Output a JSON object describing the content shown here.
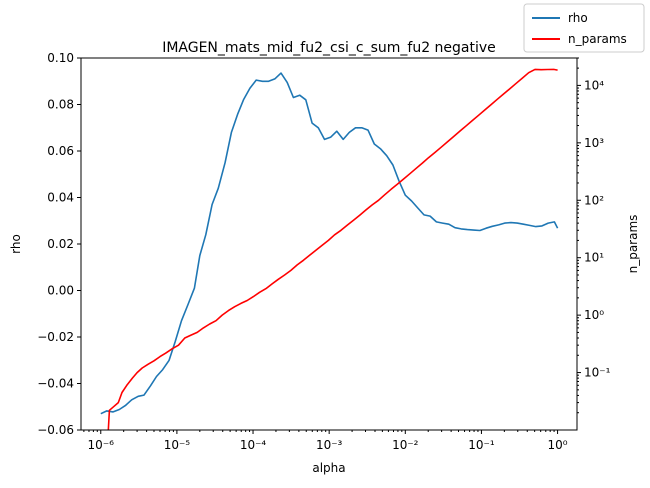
{
  "chart_data": {
    "type": "line",
    "title": "IMAGEN_mats_mid_fu2_csi_c_sum_fu2 negative",
    "xlabel": "alpha",
    "ylabel_left": "rho",
    "ylabel_right": "n_params",
    "x_scale": "log",
    "x_lim": [
      5.5e-07,
      1.8
    ],
    "y_left_lim": [
      -0.06,
      0.1
    ],
    "y_right_scale": "log",
    "y_right_lim": [
      0.01,
      30000
    ],
    "x_ticks": [
      {
        "value": 1e-06,
        "label": "10⁻⁶"
      },
      {
        "value": 1e-05,
        "label": "10⁻⁵"
      },
      {
        "value": 0.0001,
        "label": "10⁻⁴"
      },
      {
        "value": 0.001,
        "label": "10⁻³"
      },
      {
        "value": 0.01,
        "label": "10⁻²"
      },
      {
        "value": 0.1,
        "label": "10⁻¹"
      },
      {
        "value": 1,
        "label": "10⁰"
      }
    ],
    "y_left_ticks": [
      {
        "value": 0.1,
        "label": "0.10"
      },
      {
        "value": 0.08,
        "label": "0.08"
      },
      {
        "value": 0.06,
        "label": "0.06"
      },
      {
        "value": 0.04,
        "label": "0.04"
      },
      {
        "value": 0.02,
        "label": "0.02"
      },
      {
        "value": 0.0,
        "label": "0.00"
      },
      {
        "value": -0.02,
        "label": "−0.02"
      },
      {
        "value": -0.04,
        "label": "−0.04"
      },
      {
        "value": -0.06,
        "label": "−0.06"
      }
    ],
    "y_right_ticks": [
      {
        "value": 0.1,
        "label": "10⁻¹"
      },
      {
        "value": 1,
        "label": "10⁰"
      },
      {
        "value": 10,
        "label": "10¹"
      },
      {
        "value": 100,
        "label": "10²"
      },
      {
        "value": 1000,
        "label": "10³"
      },
      {
        "value": 10000,
        "label": "10⁴"
      }
    ],
    "grid": false,
    "legend_position": "top-right",
    "series": [
      {
        "name": "rho",
        "axis": "left",
        "color": "#1f77b4",
        "x": [
          1e-06,
          1.2e-06,
          1.45e-06,
          1.75e-06,
          2.1e-06,
          2.55e-06,
          3.1e-06,
          3.7e-06,
          4.5e-06,
          5.4e-06,
          6.5e-06,
          7.9e-06,
          9.5e-06,
          1.15e-05,
          1.4e-05,
          1.7e-05,
          2e-05,
          2.4e-05,
          2.9e-05,
          3.5e-05,
          4.3e-05,
          5.2e-05,
          6.3e-05,
          7.5e-05,
          9.1e-05,
          0.00011,
          0.000133,
          0.00016,
          0.000193,
          0.000233,
          0.000281,
          0.000339,
          0.00041,
          0.000494,
          0.000596,
          0.00072,
          0.000869,
          0.00105,
          0.00126,
          0.00153,
          0.00184,
          0.00222,
          0.00268,
          0.00324,
          0.00391,
          0.00471,
          0.00569,
          0.00687,
          0.00829,
          0.01,
          0.0121,
          0.0146,
          0.0176,
          0.0212,
          0.0256,
          0.0309,
          0.0373,
          0.045,
          0.0543,
          0.0655,
          0.0791,
          0.0954,
          0.115,
          0.139,
          0.168,
          0.202,
          0.244,
          0.295,
          0.356,
          0.429,
          0.518,
          0.625,
          0.754,
          0.91,
          1.0
        ],
        "values": [
          -0.053,
          -0.0518,
          -0.0522,
          -0.0512,
          -0.0495,
          -0.047,
          -0.0455,
          -0.045,
          -0.041,
          -0.037,
          -0.034,
          -0.03,
          -0.022,
          -0.013,
          -0.006,
          0.001,
          0.015,
          0.024,
          0.037,
          0.044,
          0.055,
          0.068,
          0.076,
          0.082,
          0.087,
          0.0905,
          0.09,
          0.09,
          0.091,
          0.0935,
          0.0895,
          0.083,
          0.084,
          0.082,
          0.072,
          0.07,
          0.065,
          0.066,
          0.0685,
          0.065,
          0.068,
          0.07,
          0.07,
          0.069,
          0.063,
          0.061,
          0.058,
          0.054,
          0.047,
          0.041,
          0.0385,
          0.0355,
          0.0325,
          0.032,
          0.0295,
          0.029,
          0.0285,
          0.027,
          0.0265,
          0.0262,
          0.026,
          0.0258,
          0.0268,
          0.0276,
          0.0282,
          0.029,
          0.0292,
          0.029,
          0.0285,
          0.028,
          0.0275,
          0.0278,
          0.029,
          0.0295,
          0.0268
        ]
      },
      {
        "name": "n_params",
        "axis": "right",
        "color": "#ff0000",
        "x": [
          1.25e-06,
          1.3e-06,
          1.5e-06,
          1.7e-06,
          1.9e-06,
          2.2e-06,
          2.6e-06,
          3e-06,
          3.5e-06,
          4.2e-06,
          5e-06,
          6e-06,
          7.2e-06,
          8.7e-06,
          1.05e-05,
          1.27e-05,
          1.53e-05,
          1.85e-05,
          2.23e-05,
          2.7e-05,
          3.26e-05,
          3.93e-05,
          4.75e-05,
          5.74e-05,
          6.93e-05,
          8.38e-05,
          0.000101,
          0.000122,
          0.000148,
          0.000178,
          0.000215,
          0.00026,
          0.000314,
          0.00038,
          0.000459,
          0.000554,
          0.00067,
          0.00081,
          0.000978,
          0.00118,
          0.00143,
          0.00173,
          0.00209,
          0.00252,
          0.00305,
          0.00368,
          0.00445,
          0.00538,
          0.0065,
          0.00785,
          0.0095,
          0.0115,
          0.0139,
          0.0168,
          0.0202,
          0.0245,
          0.0296,
          0.0357,
          0.0432,
          0.0522,
          0.063,
          0.0762,
          0.092,
          0.111,
          0.134,
          0.162,
          0.196,
          0.237,
          0.286,
          0.346,
          0.418,
          0.505,
          0.61,
          0.737,
          0.89,
          1.0
        ],
        "values": [
          0.0085,
          0.022,
          0.026,
          0.03,
          0.045,
          0.06,
          0.08,
          0.1,
          0.12,
          0.14,
          0.16,
          0.19,
          0.22,
          0.26,
          0.3,
          0.4,
          0.45,
          0.5,
          0.6,
          0.7,
          0.8,
          1.0,
          1.2,
          1.4,
          1.6,
          1.8,
          2.1,
          2.5,
          2.9,
          3.5,
          4.2,
          5.0,
          6.0,
          7.5,
          9.0,
          11,
          13.5,
          16.5,
          20,
          25,
          30,
          37,
          45,
          55,
          68,
          83,
          100,
          125,
          155,
          190,
          235,
          290,
          360,
          445,
          550,
          680,
          840,
          1040,
          1290,
          1600,
          1980,
          2450,
          3030,
          3750,
          4640,
          5740,
          7100,
          8790,
          10880,
          13460,
          16660,
          19000,
          18800,
          18900,
          19000,
          18500
        ]
      }
    ]
  }
}
